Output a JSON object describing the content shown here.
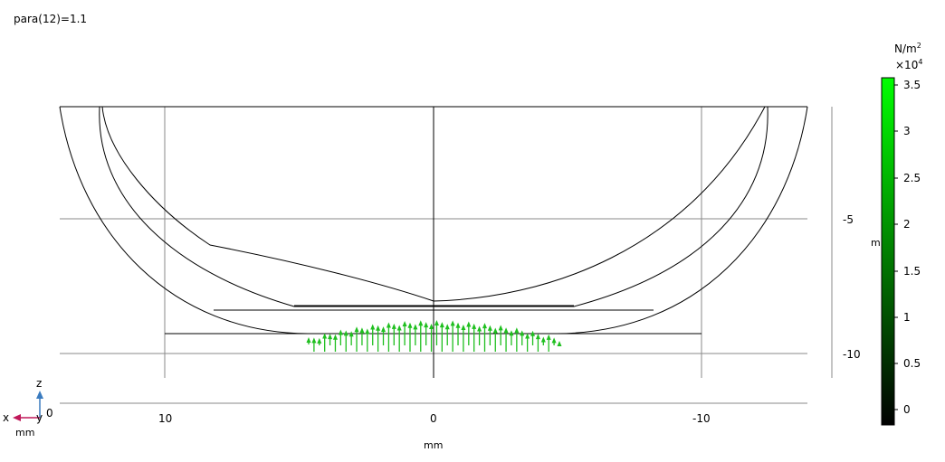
{
  "title": "para(12)=1.1",
  "x_axis": {
    "unit_label": "mm",
    "ticks": [
      {
        "value": 10,
        "label": "10"
      },
      {
        "value": 0,
        "label": "0"
      },
      {
        "value": -10,
        "label": "-10"
      }
    ]
  },
  "z_axis": {
    "unit_label": "m",
    "ticks": [
      {
        "value": -5,
        "label": "-5"
      },
      {
        "value": -10,
        "label": "-10"
      }
    ]
  },
  "colorbar": {
    "unit": "N/m",
    "unit_exp": "2",
    "scale": "×10",
    "scale_exp": "4",
    "min": 0,
    "max": 3.6,
    "ticks": [
      "3.5",
      "3",
      "2.5",
      "2",
      "1.5",
      "1",
      "0.5",
      "0"
    ],
    "colors": {
      "low": "#000000",
      "high": "#00ff00"
    }
  },
  "triad": {
    "z": "z",
    "x": "x",
    "y": "y",
    "origin": "0",
    "unit": "mm"
  },
  "arrows": {
    "color": "#1fbf1f",
    "count": 48
  }
}
